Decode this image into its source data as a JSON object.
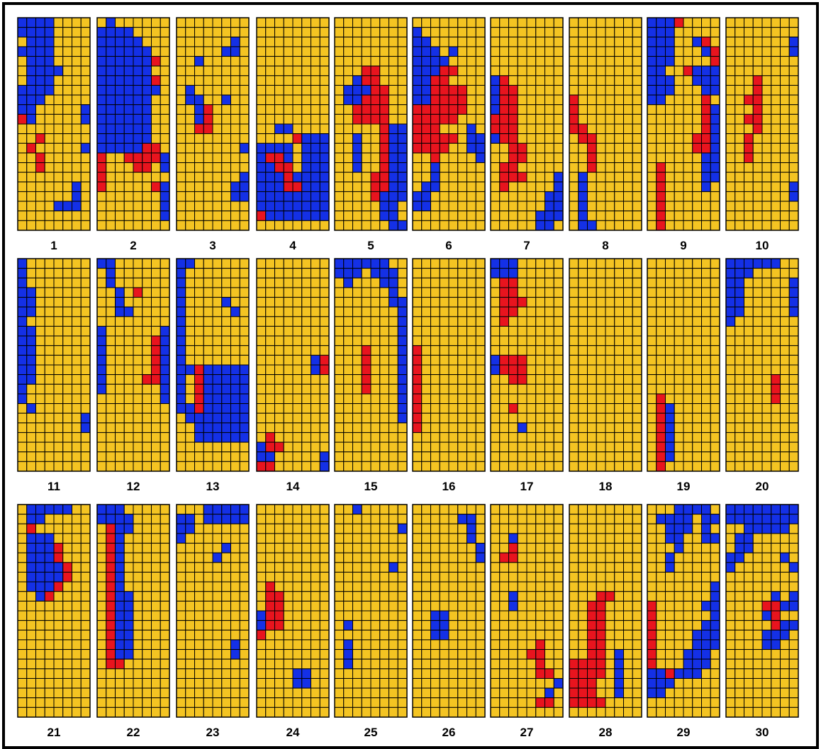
{
  "colors": {
    "Y": "#f4c422",
    "B": "#1430e6",
    "R": "#e8141e",
    "grid": "#000000"
  },
  "panels": [
    {
      "label": "1",
      "rows": [
        "BBBBYYYY",
        "BBBBYYYY",
        "YBBBYYYY",
        "BBBBYYYY",
        "YBBBYYYY",
        "YBBBBYYY",
        "YBBBYYYY",
        "BBBBYYYY",
        "BBBYYYYY",
        "BBYYYYYB",
        "RBYYYYYB",
        "YYYYYYYY",
        "YYRYYYYY",
        "YRYYYYYB",
        "YYRYYYYY",
        "YYRYYYYY",
        "YYYYYYYY",
        "YYYYYYBY",
        "YYYYYYBY",
        "YYYYBBBY",
        "YYYYYYYY",
        "YYYYYYYY"
      ]
    },
    {
      "label": "2",
      "rows": [
        "YBYYYYYY",
        "BBBBYYYY",
        "BBBBBYYY",
        "BBBBBBYY",
        "BBBBBBRY",
        "BBBBBBYY",
        "BBBBBBRY",
        "BBBBBBBY",
        "BBBBBBYY",
        "BBBBBBYY",
        "BBBBBBYY",
        "BBBBBBYY",
        "BBBBBBYY",
        "BBBBBRRY",
        "RYYRRRRB",
        "RYYYRRYB",
        "RYYYYYYY",
        "RYYYYYRB",
        "YYYYYYYB",
        "YYYYYYYB",
        "YYYYYYYB",
        "YYYYYYYY"
      ]
    },
    {
      "label": "3",
      "rows": [
        "YYYYYYYY",
        "YYYYYYYY",
        "YYYYYYBY",
        "YYYYYBBY",
        "YYBYYYYY",
        "YYYYYYYY",
        "YYYYYYYY",
        "YBYYYYYY",
        "YBBYYBYY",
        "YYBRYYYY",
        "YYBRYYYY",
        "YYRRYYYY",
        "YYYYYYYY",
        "YYYYYYYB",
        "YYYYYYYY",
        "YYYYYYYY",
        "YYYYYYYB",
        "YYYYYYBB",
        "YYYYYYBB",
        "YYYYYYYY",
        "YYYYYYYY",
        "YYYYYYYY"
      ]
    },
    {
      "label": "4",
      "rows": [
        "YYYYYYYY",
        "YYYYYYYY",
        "YYYYYYYY",
        "YYYYYYYY",
        "YYYYYYYY",
        "YYYYYYYY",
        "YYYYYYYY",
        "YYYYYYYY",
        "YYYYYYYY",
        "YYYYYYYY",
        "YYYYYYYY",
        "YYBBYYYY",
        "YYYYRBBB",
        "BBBBYBBB",
        "BRRBYBBB",
        "BBRRYBBB",
        "BBBRBBBB",
        "BBBRRBBB",
        "BBBBBBBB",
        "BBBBBBBB",
        "RBBBBBBB",
        "YYYYYYYY"
      ]
    },
    {
      "label": "5",
      "rows": [
        "YYYYYYYY",
        "YYYYYYYY",
        "YYYYYYYY",
        "YYYYYYYY",
        "YYYYYYYY",
        "YYYRRYYY",
        "YYBRRYYY",
        "YBBBRRYY",
        "YBBRRRYY",
        "YYRRRRYY",
        "YYRRRRYY",
        "YYYYYRBB",
        "YYBYYRBB",
        "YYBYYRBB",
        "YYBYYRBB",
        "YYBYYRBB",
        "YYYYRRBB",
        "YYYYRRBB",
        "YYYYRBBB",
        "YYYYYBBY",
        "YYYYYBBY",
        "YYYYYYBB"
      ]
    },
    {
      "label": "6",
      "rows": [
        "YYYYYYYY",
        "BYYYYYYY",
        "BBYYYYYY",
        "BBBYBYYY",
        "BBBBYYYY",
        "BBBRRYYY",
        "BBRRYYYY",
        "BBRRRRYY",
        "BBRRRRYY",
        "RRRRRRYY",
        "RRRRRYYY",
        "RRRYYYBY",
        "RRRRRYBB",
        "RRRRYYBB",
        "YYRYYYYB",
        "YYBYYYYY",
        "YYBYYYYY",
        "YBBYYYYY",
        "BBYYYYYY",
        "BBYYYYYY",
        "YYYYYYYY",
        "YYYYYYYY"
      ]
    },
    {
      "label": "7",
      "rows": [
        "YYYYYYYY",
        "YYYYYYYY",
        "YYYYYYYY",
        "YYYYYYYY",
        "YYYYYYYY",
        "YYYYYYYY",
        "BRYYYYYY",
        "BRRYYYYY",
        "BRRYYYYY",
        "BRRYYYYY",
        "RRRYYYYY",
        "RRRYYYYY",
        "BRRYYYYY",
        "YYRRYYYY",
        "YYRRYYYY",
        "YRRYYYYY",
        "YRRRYYYB",
        "YRYYYYYB",
        "YYYYYYBB",
        "YYYYYYBB",
        "YYYYYBBB",
        "YYYYYBBY"
      ]
    },
    {
      "label": "8",
      "rows": [
        "YYYYYYYY",
        "YYYYYYYY",
        "YYYYYYYY",
        "YYYYYYYY",
        "YYYYYYYY",
        "YYYYYYYY",
        "YYYYYYYY",
        "YYYYYYYY",
        "RYYYYYYY",
        "RYYYYYYY",
        "RYYYYYYY",
        "RRYYYYYY",
        "YRRYYYYY",
        "YYRYYYYY",
        "YYRYYYYY",
        "YYRYYYYY",
        "YBYYYYYY",
        "YBYYYYYY",
        "YBYYYYYY",
        "YBYYYYYY",
        "YBYYYYYY",
        "YBBYYYYY"
      ]
    },
    {
      "label": "9",
      "rows": [
        "BBBRYYYY",
        "BBBYYYYY",
        "BBBYYBRY",
        "BBBYYYBR",
        "BBBYYYYR",
        "BBYYRBBB",
        "BBBYYBBB",
        "BBBYYYBB",
        "BBYYYYRY",
        "YYYYYYRB",
        "YYYYYYRB",
        "YYYYYYRB",
        "YYYYYRRB",
        "YYYYYRRB",
        "YYYYYYBB",
        "YRYYYYBB",
        "YRYYYYBB",
        "YRYYYYBY",
        "YRYYYYYY",
        "YRYYYYYY",
        "YRYYYYYY",
        "YRYYYYYY"
      ]
    },
    {
      "label": "10",
      "rows": [
        "YYYYYYYY",
        "YYYYYYYY",
        "YYYYYYYB",
        "YYYYYYYB",
        "YYYYYYYY",
        "YYYYYYYY",
        "YYYRYYYY",
        "YYYRYYYY",
        "YYRRYYYY",
        "YYYRYYYY",
        "YYRRYYYY",
        "YYYRYYYY",
        "YYRYYYYY",
        "YYRYYYYY",
        "YYRYYYYY",
        "YYYYYYYY",
        "YYYYYYYY",
        "YYYYYYYB",
        "YYYYYYYB",
        "YYYYYYYY",
        "YYYYYYYY",
        "YYYYYYYY"
      ]
    },
    {
      "label": "11",
      "rows": [
        "BYYYYYYY",
        "BYYYYYYY",
        "BYYYYYYY",
        "BBYYYYYY",
        "BBYYYYYY",
        "BBYYYYYY",
        "BYYYYYYY",
        "BBYYYYYY",
        "BBYYYYYY",
        "BBYYYYYY",
        "BBYYYYYY",
        "BBYYYYYY",
        "BBYYYYYY",
        "BYYYYYYY",
        "BYYYYYYY",
        "YBYYYYYY",
        "YYYYYYYB",
        "YYYYYYYB",
        "YYYYYYYY",
        "YYYYYYYY",
        "YYYYYYYY",
        "YYYYYYYY"
      ]
    },
    {
      "label": "12",
      "rows": [
        "BBYYYYYY",
        "YBYYYYYY",
        "YBYYYYYY",
        "YYBYRYYY",
        "YYBYYYYY",
        "YYBBYYYY",
        "YYYYYYYY",
        "BYYYYYYB",
        "BYYYYYRB",
        "BYYYYYRB",
        "BYYYYYRB",
        "BYYYYYRB",
        "BYYYYRRB",
        "BYYYYYYB",
        "YYYYYYYB",
        "YYYYYYYY",
        "YYYYYYYY",
        "YYYYYYYY",
        "YYYYYYYY",
        "YYYYYYYY",
        "YYYYYYYY",
        "YYYYYYYY"
      ]
    },
    {
      "label": "13",
      "rows": [
        "BBYYYYYY",
        "BYYYYYYY",
        "BYYYYYYY",
        "BYYYYYYY",
        "BYYYYBYY",
        "BYYYYYBY",
        "BYYYYYYY",
        "BYYYYYYY",
        "BYYYYYYY",
        "BYYYYYYY",
        "BYYYYYYY",
        "BBRBBBBB",
        "BYRBBBBB",
        "BYRBBBBB",
        "BYRBBBBB",
        "BBRBBBBB",
        "YBBBBBBB",
        "YYBBBBBB",
        "YYBBBBBB",
        "YYYYYYYY",
        "YYYYYYYY",
        "YYYYYYYY"
      ]
    },
    {
      "label": "14",
      "rows": [
        "YYYYYYYY",
        "YYYYYYYY",
        "YYYYYYYY",
        "YYYYYYYY",
        "YYYYYYYY",
        "YYYYYYYY",
        "YYYYYYYY",
        "YYYYYYYY",
        "YYYYYYYY",
        "YYYYYYYY",
        "YYYYYYBR",
        "YYYYYYBR",
        "YYYYYYYY",
        "YYYYYYYY",
        "YYYYYYYY",
        "YYYYYYYY",
        "YYYYYYYY",
        "YYYYYYYY",
        "YRYYYYYY",
        "BRRYYYYY",
        "BBYYYYYB",
        "RRYYYYYB"
      ]
    },
    {
      "label": "15",
      "rows": [
        "BBBBBBYY",
        "BBBYBBBY",
        "YBYYYBBY",
        "YYYYYYBY",
        "YYYYYYBB",
        "YYYYYYYB",
        "YYYYYYYB",
        "YYYYYYYB",
        "YYYYYYYB",
        "YYYRYYYB",
        "YYYRYYYB",
        "YYYRYYYB",
        "YYYRYYYB",
        "YYYRYYYB",
        "YYYYYYYB",
        "YYYYYYYB",
        "YYYYYYYB",
        "YYYYYYYY",
        "YYYYYYYY",
        "YYYYYYYY",
        "YYYYYYYY",
        "YYYYYYYY"
      ]
    },
    {
      "label": "16",
      "rows": [
        "YYYYYYYY",
        "YYYYYYYY",
        "YYYYYYYY",
        "YYYYYYYY",
        "YYYYYYYY",
        "YYYYYYYY",
        "YYYYYYYY",
        "YYYYYYYY",
        "YYYYYYYY",
        "RYYYYYYY",
        "RYYYYYYY",
        "RYYYYYYY",
        "RYYYYYYY",
        "RYYYYYYY",
        "RYYYYYYY",
        "RYYYYYYY",
        "RYYYYYYY",
        "RYYYYYYY",
        "YYYYYYYY",
        "YYYYYYYY",
        "YYYYYYYY",
        "YYYYYYYY"
      ]
    },
    {
      "label": "17",
      "rows": [
        "BBBYYYYY",
        "BBBYYYYY",
        "YRRYYYYY",
        "YRRYYYYY",
        "YRRRYYYY",
        "YRRYYYYY",
        "YRYYYYYY",
        "YYYYYYYY",
        "YYYYYYYY",
        "YYYYYYYY",
        "BRRRYYYY",
        "BRRRYYYY",
        "YYRRYYYY",
        "YYYYYYYY",
        "YYYYYYYY",
        "YYRYYYYY",
        "YYYYYYYY",
        "YYYBYYYY",
        "YYYYYYYY",
        "YYYYYYYY",
        "YYYYYYYY",
        "YYYYYYYY"
      ]
    },
    {
      "label": "18",
      "rows": [
        "YYYYYYYY",
        "YYYYYYYY",
        "YYYYYYYY",
        "YYYYYYYY",
        "YYYYYYYY",
        "YYYYYYYY",
        "YYYYYYYY",
        "YYYYYYYY",
        "YYYYYYYY",
        "YYYYYYYY",
        "YYYYYYYY",
        "YYYYYYYY",
        "YYYYYYYY",
        "YYYYYYYY",
        "YYYYYYYY",
        "YYYYYYYY",
        "YYYYYYYY",
        "YYYYYYYY",
        "YYYYYYYY",
        "YYYYYYYY",
        "YYYYYYYY",
        "YYYYYYYY"
      ]
    },
    {
      "label": "19",
      "rows": [
        "YYYYYYYY",
        "YYYYYYYY",
        "YYYYYYYY",
        "YYYYYYYY",
        "YYYYYYYY",
        "YYYYYYYY",
        "YYYYYYYY",
        "YYYYYYYY",
        "YYYYYYYY",
        "YYYYYYYY",
        "YYYYYYYY",
        "YYYYYYYY",
        "YYYYYYYY",
        "YYYYYYYY",
        "YRYYYYYY",
        "YRBYYYYY",
        "YRBYYYYY",
        "YRBYYYYY",
        "YRBYYYYY",
        "YRBYYYYY",
        "YRBYYYYY",
        "YRYYYYYY"
      ]
    },
    {
      "label": "20",
      "rows": [
        "BBBBBBYY",
        "BBBYYYYY",
        "BBYYYYYB",
        "BBYYYYYB",
        "BBYYYYYB",
        "BBYYYYYB",
        "BYYYYYYY",
        "YYYYYYYY",
        "YYYYYYYY",
        "YYYYYYYY",
        "YYYYYYYY",
        "YYYYYYYY",
        "YYYYYRYY",
        "YYYYYRYY",
        "YYYYYRYY",
        "YYYYYYYY",
        "YYYYYYYY",
        "YYYYYYYY",
        "YYYYYYYY",
        "YYYYYYYY",
        "YYYYYYYY",
        "YYYYYYYY"
      ]
    },
    {
      "label": "21",
      "rows": [
        "YBBBBBYY",
        "YBBYYYYY",
        "YRYYYYYY",
        "YBBBYYYY",
        "YBBBRYYY",
        "YBBBRYYY",
        "YBBBBRYY",
        "YBBBBRYY",
        "YBBBRYYY",
        "YYBRYYYY",
        "YYYYYYYY",
        "YYYYYYYY",
        "YYYYYYYY",
        "YYYYYYYY",
        "YYYYYYYY",
        "YYYYYYYY",
        "YYYYYYYY",
        "YYYYYYYY",
        "YYYYYYYY",
        "YYYYYYYY",
        "YYYYYYYY",
        "YYYYYYYY"
      ]
    },
    {
      "label": "22",
      "rows": [
        "BBBYYYYY",
        "BBBBYYYY",
        "YRBBYYYY",
        "YRBYYYYY",
        "YRBYYYYY",
        "YRBYYYYY",
        "YRBYYYYY",
        "YRBYYYYY",
        "YRBYYYYY",
        "YRBBYYYY",
        "YRBBYYYY",
        "YRBBYYYY",
        "YRBBYYYY",
        "YRBBYYYY",
        "YRBBYYYY",
        "YRBBYYYY",
        "YRRYYYYY",
        "YYYYYYYY",
        "YYYYYYYY",
        "YYYYYYYY",
        "YYYYYYYY",
        "YYYYYYYY"
      ]
    },
    {
      "label": "23",
      "rows": [
        "YYYBBBBB",
        "BBYBBBBB",
        "BBYYYYYY",
        "BYYYYYYY",
        "YYYYYBYY",
        "YYYYBYYY",
        "YYYYYYYY",
        "YYYYYYYY",
        "YYYYYYYY",
        "YYYYYYYY",
        "YYYYYYYY",
        "YYYYYYYY",
        "YYYYYYYY",
        "YYYYYYYY",
        "YYYYYYBY",
        "YYYYYYBY",
        "YYYYYYYY",
        "YYYYYYYY",
        "YYYYYYYY",
        "YYYYYYYY",
        "YYYYYYYY",
        "YYYYYYYY"
      ]
    },
    {
      "label": "24",
      "rows": [
        "YYYYYYYY",
        "YYYYYYYY",
        "YYYYYYYY",
        "YYYYYYYY",
        "YYYYYYYY",
        "YYYYYYYY",
        "YYYYYYYY",
        "YYYYYYYY",
        "YRYYYYYY",
        "YRRYYYYY",
        "YRRYYYYY",
        "BRRYYYYY",
        "BRRYYYYY",
        "RYYYYYYY",
        "YYYYYYYY",
        "YYYYYYYY",
        "YYYYYYYY",
        "YYYYBBYY",
        "YYYYBBYY",
        "YYYYYYYY",
        "YYYYYYYY",
        "YYYYYYYY"
      ]
    },
    {
      "label": "25",
      "rows": [
        "YYBYYYYY",
        "YYYYYYYY",
        "YYYYYYYB",
        "YYYYYYYY",
        "YYYYYYYY",
        "YYYYYYYY",
        "YYYYYYBY",
        "YYYYYYYY",
        "YYYYYYYY",
        "YYYYYYYY",
        "YYYYYYYY",
        "YYYYYYYY",
        "YBYYYYYY",
        "YYYYYYYY",
        "YBYYYYYY",
        "YBYYYYYY",
        "YBYYYYYY",
        "YYYYYYYY",
        "YYYYYYYY",
        "YYYYYYYY",
        "YYYYYYYY",
        "YYYYYYYY"
      ]
    },
    {
      "label": "26",
      "rows": [
        "YYYYYYYY",
        "YYYYYBBY",
        "YYYYYYBY",
        "YYYYYYBY",
        "YYYYYYYB",
        "YYYYYYYB",
        "YYYYYYYY",
        "YYYYYYYY",
        "YYYYYYYY",
        "YYYYYYYY",
        "YYYYYYYY",
        "YYBBYYYY",
        "YYBBYYYY",
        "YYBBYYYY",
        "YYYYYYYY",
        "YYYYYYYY",
        "YYYYYYYY",
        "YYYYYYYY",
        "YYYYYYYY",
        "YYYYYYYY",
        "YYYYYYYY",
        "YYYYYYYY"
      ]
    },
    {
      "label": "27",
      "rows": [
        "YYYYYYYY",
        "YYYYYYYY",
        "YYYYYYYY",
        "YYBYYYYY",
        "YYRYYYYY",
        "YRRYYYYY",
        "YYYYYYYY",
        "YYYYYYYY",
        "YYYYYYYY",
        "YYBYYYYY",
        "YYBYYYYY",
        "YYYYYYYY",
        "YYYYYYYY",
        "YYYYYYYY",
        "YYYYYRYY",
        "YYYYRRYY",
        "YYYYYRYY",
        "YYYYYRRY",
        "YYYYYYYB",
        "YYYYYYBY",
        "YYYYYRRY",
        "YYYYYYYY"
      ]
    },
    {
      "label": "28",
      "rows": [
        "YYYYYYYY",
        "YYYYYYYY",
        "YYYYYYYY",
        "YYYYYYYY",
        "YYYYYYYY",
        "YYYYYYYY",
        "YYYYYYYY",
        "YYYYYYYY",
        "YYYYYYYY",
        "YYYRRYYY",
        "YYRRYYYY",
        "YYRRYYYY",
        "YYRRYYYY",
        "YYRRYYYY",
        "YYRRYYYY",
        "YYRRYBYY",
        "RRRRYBYY",
        "RRRRYBYY",
        "RRRYYBYY",
        "RRRYYBYY",
        "RRRRYYYY",
        "YYYYYYYY"
      ]
    },
    {
      "label": "29",
      "rows": [
        "YYYBBBBY",
        "YBBBBYBB",
        "YYBBBYBY",
        "YYBBYYBB",
        "YYYBYYYY",
        "YYBYYYYY",
        "YYBYYYYY",
        "YYYYYYYY",
        "YYYYYYYB",
        "YYYYYYYB",
        "RYYYYYBB",
        "RYYYYYYB",
        "RYYYYYBB",
        "RYYYYBBB",
        "RYYYYBBB",
        "RYYYBBBY",
        "RYYYBBBY",
        "BBRBBBYY",
        "BBBYYYYY",
        "BBYYYYYY",
        "YYYYYYYY",
        "YYYYYYYY"
      ]
    },
    {
      "label": "30",
      "rows": [
        "BBBBBBBB",
        "BBBBBBBB",
        "YYBBBBBY",
        "YBBYYYYY",
        "YBBYYYYY",
        "BBYYYYBY",
        "BYYYYYYB",
        "YYYYYYYY",
        "YYYYYYYY",
        "YYYYYBYB",
        "YYYYRRBB",
        "YYYYBRYY",
        "YYYYYRBB",
        "YYYYBBBY",
        "YYYYBBYY",
        "YYYYYYYY",
        "YYYYYYYY",
        "YYYYYYYY",
        "YYYYYYYY",
        "YYYYYYYY",
        "YYYYYYYY",
        "YYYYYYYY"
      ]
    }
  ]
}
